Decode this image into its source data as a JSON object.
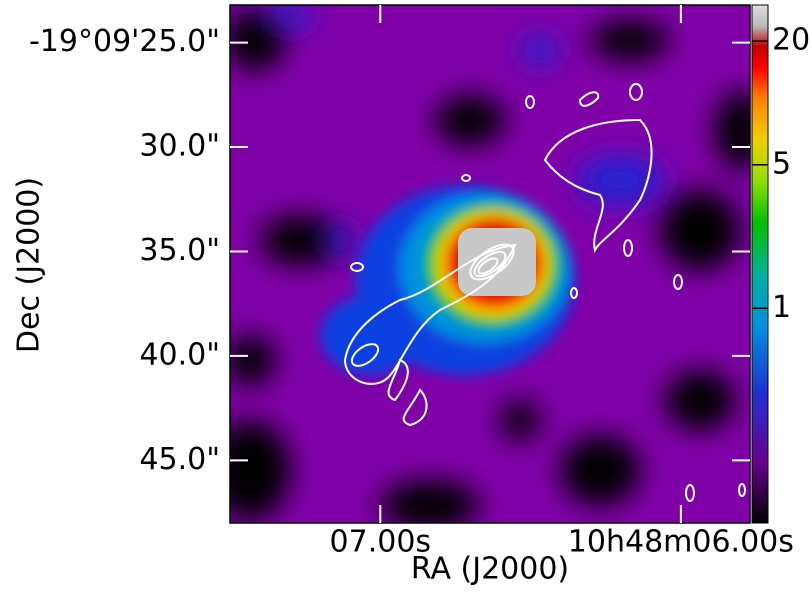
{
  "chart_data": {
    "type": "image",
    "xlabel": "RA (J2000)",
    "ylabel": "Dec (J2000)",
    "xlim": [
      7.5,
      5.77
    ],
    "xticks": [
      {
        "value": 7.0,
        "label": "07.00s"
      },
      {
        "value": 6.0,
        "label": "10h48m06.00s"
      }
    ],
    "ylim": [
      48.0,
      23.2
    ],
    "yticks": [
      {
        "value": 25,
        "label": "-19°09'25.0\""
      },
      {
        "value": 30,
        "label": "30.0\""
      },
      {
        "value": 35,
        "label": "35.0\""
      },
      {
        "value": 40,
        "label": "40.0\""
      },
      {
        "value": 45,
        "label": "45.0\""
      }
    ],
    "colorbar": {
      "scale": "log",
      "lim": [
        0.09,
        30
      ],
      "ticks": [
        1,
        5,
        20
      ]
    },
    "tick_color": "#ffffff"
  }
}
